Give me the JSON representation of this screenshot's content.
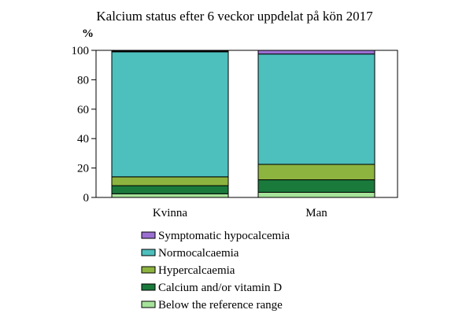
{
  "chart_data": {
    "type": "bar",
    "stacked": true,
    "title": "Kalcium status efter 6 veckor uppdelat på kön 2017",
    "ylabel": "%",
    "xlabel": "",
    "ylim": [
      0,
      100
    ],
    "yticks": [
      0,
      20,
      40,
      60,
      80,
      100
    ],
    "grid": false,
    "legend_position": "bottom",
    "categories": [
      "Kvinna",
      "Man"
    ],
    "series": [
      {
        "name": "Below the reference range",
        "color": "#a6e39a",
        "values": [
          2.5,
          3.5
        ]
      },
      {
        "name": "Calcium and/or vitamin D",
        "color": "#1a7a3c",
        "values": [
          5.5,
          8.5
        ]
      },
      {
        "name": "Hypercalcaemia",
        "color": "#8db43f",
        "values": [
          6,
          10.5
        ]
      },
      {
        "name": "Normocalcaemia",
        "color": "#4dbfbd",
        "values": [
          85,
          75
        ]
      },
      {
        "name": "Symptomatic hypocalcemia",
        "color": "#9b6fd1",
        "values": [
          0.5,
          2.5
        ]
      }
    ]
  }
}
